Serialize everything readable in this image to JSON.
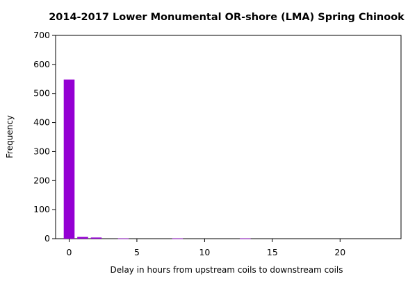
{
  "chart_data": {
    "type": "bar",
    "title": "2014-2017 Lower Monumental OR-shore (LMA) Spring Chinook",
    "xlabel": "Delay in hours from upstream coils to downstream coils",
    "ylabel": "Frequency",
    "xlim": [
      -1,
      24.5
    ],
    "ylim": [
      0,
      700
    ],
    "x_ticks": [
      0,
      5,
      10,
      15,
      20
    ],
    "y_ticks": [
      0,
      100,
      200,
      300,
      400,
      500,
      600,
      700
    ],
    "bar_width": 0.8,
    "color": "#9400D3",
    "x": [
      0,
      1,
      2,
      4,
      8,
      13
    ],
    "values": [
      548,
      6,
      4,
      1,
      1,
      1
    ]
  }
}
